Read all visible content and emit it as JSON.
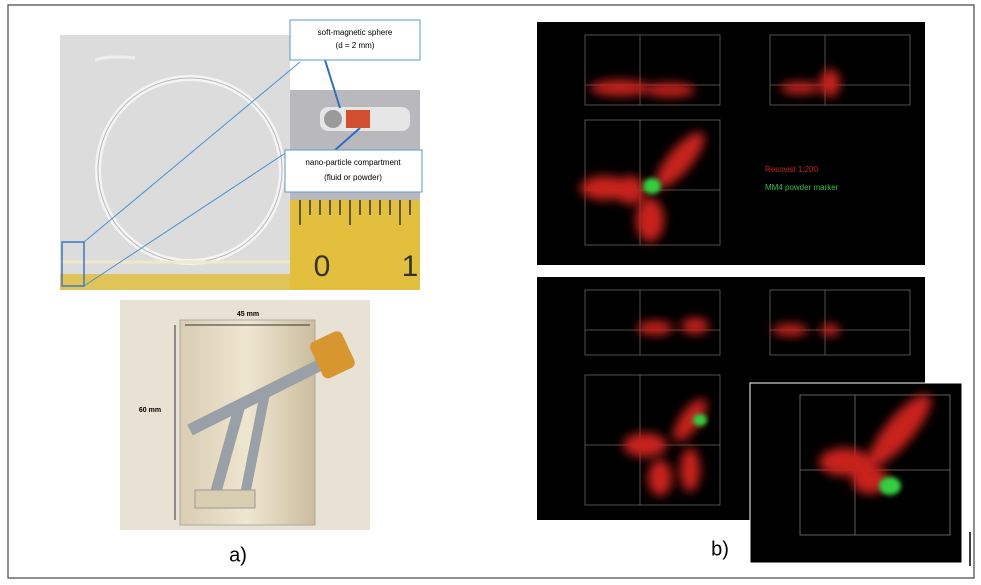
{
  "panel_a": {
    "label": "a)",
    "callouts": [
      [
        "soft-magnetic sphere",
        "(d = 2 mm)"
      ],
      [
        "nano-particle compartment",
        "(fluid or powder)"
      ]
    ],
    "ruler_labels": [
      "0",
      "1"
    ],
    "dimensions": [
      "45 mm",
      "60 mm"
    ]
  },
  "panel_b": {
    "label": "b)",
    "legend": [
      "Resovist 1:200",
      "MM4 powder marker"
    ]
  }
}
